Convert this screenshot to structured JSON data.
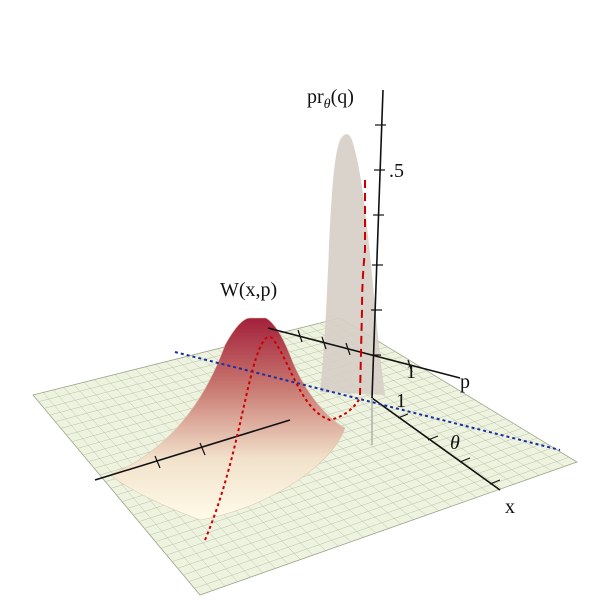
{
  "labels": {
    "marginal_axis": {
      "main": "pr",
      "sub": "θ",
      "tail": "(q)"
    },
    "marginal_tick": ".5",
    "wigner": "W(x,p)",
    "p_tick": "1",
    "p_axis": "p",
    "x_tick": "1",
    "angle": "θ",
    "x_axis": "x"
  }
}
